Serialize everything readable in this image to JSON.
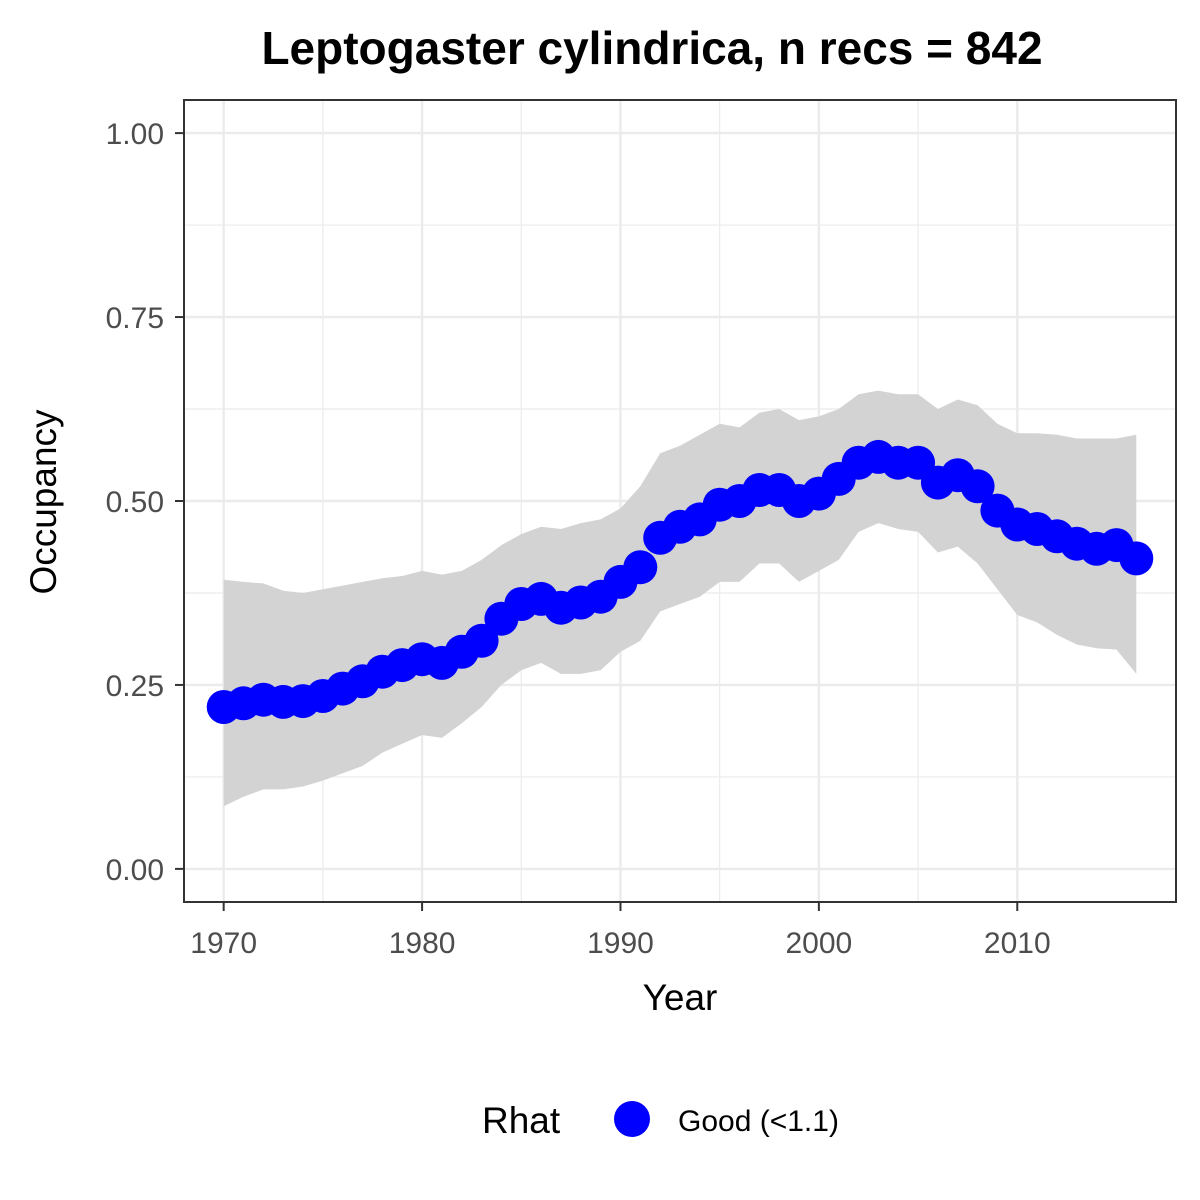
{
  "chart_data": {
    "type": "line",
    "title": "Leptogaster cylindrica, n recs = 842",
    "xlabel": "Year",
    "ylabel": "Occupancy",
    "xlim": [
      1968,
      2018
    ],
    "ylim": [
      -0.045,
      1.045
    ],
    "x_ticks": [
      1970,
      1980,
      1990,
      2000,
      2010
    ],
    "x_tick_labels": [
      "1970",
      "1980",
      "1990",
      "2000",
      "2010"
    ],
    "y_ticks": [
      0,
      0.25,
      0.5,
      0.75,
      1
    ],
    "y_tick_labels": [
      "0.00",
      "0.25",
      "0.50",
      "0.75",
      "1.00"
    ],
    "grid": true,
    "legend": {
      "title": "Rhat",
      "position": "bottom",
      "entries": [
        {
          "label": "Good (<1.1)",
          "color": "#0000ff"
        }
      ]
    },
    "colors": {
      "points": "#0000ff",
      "ribbon": "#d3d3d3",
      "grid": "#ebebeb",
      "panel_border": "#333333"
    },
    "series": [
      {
        "x": [
          1970,
          1971,
          1972,
          1973,
          1974,
          1975,
          1976,
          1977,
          1978,
          1979,
          1980,
          1981,
          1982,
          1983,
          1984,
          1985,
          1986,
          1987,
          1988,
          1989,
          1990,
          1991,
          1992,
          1993,
          1994,
          1995,
          1996,
          1997,
          1998,
          1999,
          2000,
          2001,
          2002,
          2003,
          2004,
          2005,
          2006,
          2007,
          2008,
          2009,
          2010,
          2011,
          2012,
          2013,
          2014,
          2015,
          2016
        ],
        "mean": [
          0.22,
          0.225,
          0.23,
          0.227,
          0.228,
          0.235,
          0.245,
          0.255,
          0.268,
          0.277,
          0.285,
          0.28,
          0.295,
          0.31,
          0.34,
          0.36,
          0.367,
          0.355,
          0.362,
          0.37,
          0.39,
          0.41,
          0.45,
          0.465,
          0.475,
          0.495,
          0.5,
          0.515,
          0.515,
          0.5,
          0.51,
          0.53,
          0.552,
          0.56,
          0.552,
          0.552,
          0.525,
          0.535,
          0.52,
          0.487,
          0.468,
          0.462,
          0.452,
          0.442,
          0.435,
          0.44,
          0.422
        ],
        "lower": [
          0.085,
          0.098,
          0.108,
          0.108,
          0.112,
          0.12,
          0.13,
          0.14,
          0.158,
          0.17,
          0.182,
          0.178,
          0.198,
          0.22,
          0.25,
          0.27,
          0.28,
          0.265,
          0.265,
          0.27,
          0.295,
          0.31,
          0.35,
          0.36,
          0.37,
          0.39,
          0.39,
          0.415,
          0.415,
          0.39,
          0.405,
          0.42,
          0.458,
          0.47,
          0.462,
          0.458,
          0.43,
          0.438,
          0.415,
          0.38,
          0.345,
          0.335,
          0.318,
          0.305,
          0.3,
          0.298,
          0.265
        ],
        "upper": [
          0.393,
          0.39,
          0.388,
          0.378,
          0.375,
          0.38,
          0.385,
          0.39,
          0.395,
          0.398,
          0.405,
          0.4,
          0.405,
          0.42,
          0.44,
          0.455,
          0.465,
          0.462,
          0.47,
          0.475,
          0.49,
          0.52,
          0.565,
          0.575,
          0.59,
          0.605,
          0.6,
          0.62,
          0.625,
          0.61,
          0.615,
          0.625,
          0.645,
          0.65,
          0.645,
          0.645,
          0.625,
          0.638,
          0.63,
          0.605,
          0.592,
          0.592,
          0.59,
          0.585,
          0.585,
          0.585,
          0.59
        ]
      }
    ]
  }
}
